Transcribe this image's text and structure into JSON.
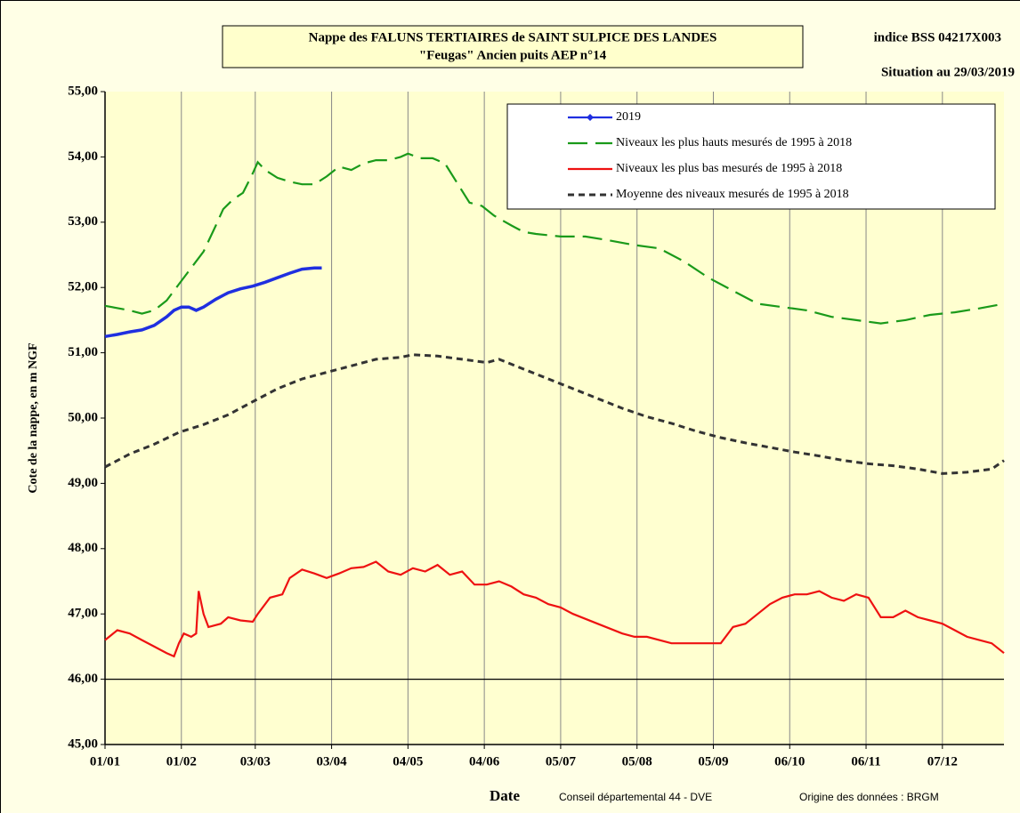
{
  "chart_data": {
    "type": "line",
    "title": "Nappe des FALUNS TERTIAIRES de SAINT SULPICE DES LANDES",
    "subtitle": "\"Feugas\"   Ancien puits AEP n°14",
    "annotations": [
      "indice BSS 04217X003",
      "Situation au 29/03/2019",
      "Conseil départemental 44  - DVE",
      "Origine des données : BRGM"
    ],
    "x_label": "Date",
    "y_label": "Cote de la nappe, en m NGF",
    "xlim": [
      0,
      365
    ],
    "xticks": [
      {
        "value": 0,
        "label": "01/01"
      },
      {
        "value": 31,
        "label": "01/02"
      },
      {
        "value": 61,
        "label": "03/03"
      },
      {
        "value": 92,
        "label": "03/04"
      },
      {
        "value": 123,
        "label": "04/05"
      },
      {
        "value": 154,
        "label": "04/06"
      },
      {
        "value": 185,
        "label": "05/07"
      },
      {
        "value": 216,
        "label": "05/08"
      },
      {
        "value": 247,
        "label": "05/09"
      },
      {
        "value": 278,
        "label": "06/10"
      },
      {
        "value": 309,
        "label": "06/11"
      },
      {
        "value": 340,
        "label": "07/12"
      }
    ],
    "ylim": [
      45,
      55
    ],
    "yticks": [
      {
        "value": 45,
        "label": "45,00"
      },
      {
        "value": 46,
        "label": "46,00"
      },
      {
        "value": 47,
        "label": "47,00"
      },
      {
        "value": 48,
        "label": "48,00"
      },
      {
        "value": 49,
        "label": "49,00"
      },
      {
        "value": 50,
        "label": "50,00"
      },
      {
        "value": 51,
        "label": "51,00"
      },
      {
        "value": 52,
        "label": "52,00"
      },
      {
        "value": 53,
        "label": "53,00"
      },
      {
        "value": 54,
        "label": "54,00"
      },
      {
        "value": 55,
        "label": "55,00"
      }
    ],
    "grid": "x",
    "reference_line": 46,
    "legend": "upper right",
    "series": [
      {
        "name": "2019",
        "color": "#1f2fe0",
        "dash": "solid",
        "x": [
          0,
          5,
          10,
          15,
          20,
          25,
          28,
          31,
          34,
          37,
          40,
          45,
          50,
          55,
          60,
          65,
          70,
          75,
          80,
          85,
          88
        ],
        "values": [
          51.25,
          51.28,
          51.32,
          51.35,
          51.42,
          51.55,
          51.65,
          51.7,
          51.7,
          51.65,
          51.7,
          51.82,
          51.92,
          51.98,
          52.02,
          52.08,
          52.15,
          52.22,
          52.28,
          52.3,
          52.3
        ]
      },
      {
        "name": "Niveaux les plus hauts mesurés de 1995 à 2018",
        "color": "#1a9a1a",
        "dash": "long",
        "x": [
          0,
          10,
          15,
          20,
          25,
          30,
          35,
          40,
          45,
          48,
          52,
          56,
          60,
          62,
          65,
          70,
          75,
          80,
          85,
          90,
          95,
          100,
          105,
          110,
          115,
          120,
          123,
          128,
          133,
          138,
          143,
          148,
          153,
          158,
          165,
          170,
          175,
          185,
          195,
          205,
          215,
          225,
          235,
          245,
          255,
          265,
          275,
          285,
          295,
          305,
          315,
          325,
          335,
          345,
          355,
          365
        ],
        "values": [
          51.72,
          51.65,
          51.6,
          51.65,
          51.8,
          52.05,
          52.3,
          52.55,
          52.95,
          53.2,
          53.35,
          53.45,
          53.75,
          53.92,
          53.8,
          53.68,
          53.62,
          53.58,
          53.58,
          53.7,
          53.85,
          53.8,
          53.9,
          53.95,
          53.95,
          54.0,
          54.05,
          53.98,
          53.98,
          53.9,
          53.6,
          53.3,
          53.25,
          53.1,
          52.95,
          52.85,
          52.82,
          52.78,
          52.78,
          52.72,
          52.65,
          52.6,
          52.4,
          52.15,
          51.95,
          51.75,
          51.7,
          51.65,
          51.55,
          51.5,
          51.45,
          51.5,
          51.58,
          51.62,
          51.68,
          51.75
        ]
      },
      {
        "name": "Niveaux les plus bas mesurés de 1995 à 2018",
        "color": "#ee1111",
        "dash": "solid",
        "x": [
          0,
          5,
          10,
          15,
          20,
          25,
          28,
          30,
          32,
          35,
          37,
          38,
          40,
          42,
          47,
          50,
          55,
          60,
          62,
          67,
          72,
          75,
          80,
          85,
          90,
          95,
          100,
          105,
          110,
          115,
          120,
          125,
          130,
          135,
          140,
          145,
          150,
          155,
          160,
          165,
          170,
          175,
          180,
          185,
          190,
          200,
          210,
          215,
          220,
          230,
          240,
          250,
          255,
          260,
          265,
          270,
          275,
          280,
          285,
          290,
          295,
          300,
          305,
          310,
          315,
          320,
          325,
          330,
          335,
          340,
          345,
          350,
          355,
          360,
          365
        ],
        "values": [
          46.6,
          46.75,
          46.7,
          46.6,
          46.5,
          46.4,
          46.35,
          46.55,
          46.7,
          46.65,
          46.7,
          47.35,
          47.0,
          46.8,
          46.85,
          46.95,
          46.9,
          46.88,
          47.0,
          47.25,
          47.3,
          47.55,
          47.68,
          47.62,
          47.55,
          47.62,
          47.7,
          47.72,
          47.8,
          47.65,
          47.6,
          47.7,
          47.65,
          47.75,
          47.6,
          47.65,
          47.45,
          47.45,
          47.5,
          47.42,
          47.3,
          47.25,
          47.15,
          47.1,
          47.0,
          46.85,
          46.7,
          46.65,
          46.65,
          46.55,
          46.55,
          46.55,
          46.8,
          46.85,
          47.0,
          47.15,
          47.25,
          47.3,
          47.3,
          47.35,
          47.25,
          47.2,
          47.3,
          47.25,
          46.95,
          46.95,
          47.05,
          46.95,
          46.9,
          46.85,
          46.75,
          46.65,
          46.6,
          46.55,
          46.4
        ]
      },
      {
        "name": "Moyenne des niveaux mesurés de 1995 à 2018",
        "color": "#333333",
        "dash": "short",
        "x": [
          0,
          10,
          20,
          30,
          40,
          50,
          60,
          70,
          80,
          90,
          100,
          110,
          120,
          125,
          135,
          145,
          155,
          160,
          170,
          180,
          190,
          200,
          210,
          220,
          230,
          240,
          250,
          260,
          270,
          280,
          290,
          300,
          310,
          320,
          330,
          340,
          350,
          360,
          365
        ],
        "values": [
          49.25,
          49.45,
          49.6,
          49.78,
          49.9,
          50.05,
          50.25,
          50.45,
          50.6,
          50.7,
          50.8,
          50.9,
          50.93,
          50.97,
          50.95,
          50.9,
          50.85,
          50.9,
          50.75,
          50.6,
          50.45,
          50.3,
          50.15,
          50.02,
          49.92,
          49.8,
          49.7,
          49.62,
          49.55,
          49.48,
          49.42,
          49.35,
          49.3,
          49.27,
          49.22,
          49.15,
          49.17,
          49.22,
          49.35
        ]
      }
    ]
  }
}
